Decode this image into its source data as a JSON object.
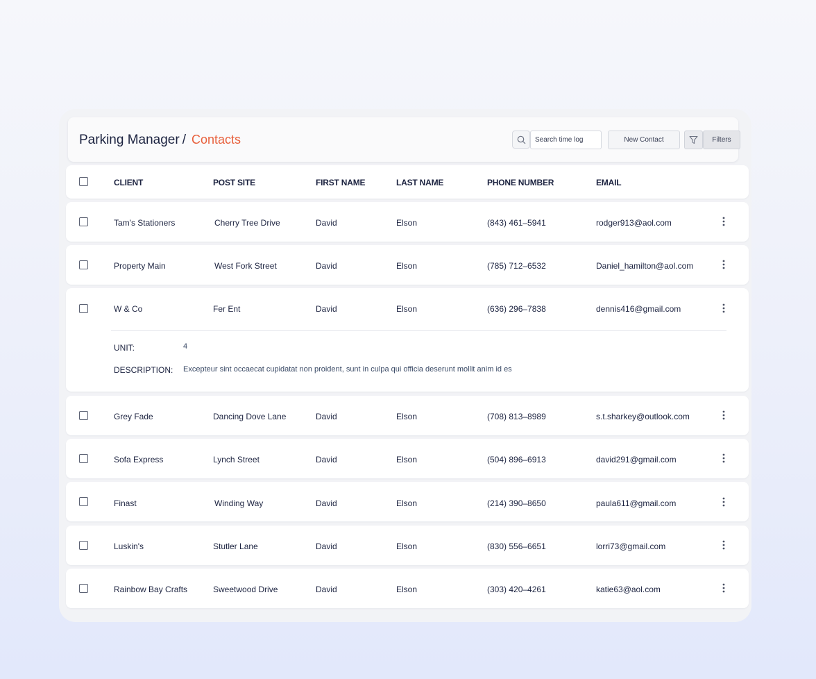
{
  "breadcrumb": {
    "parent": "Parking Manager",
    "separator": "/",
    "current": "Contacts"
  },
  "toolbar": {
    "search_placeholder": "Search time log",
    "new_contact_label": "New Contact",
    "filters_label": "Filters"
  },
  "icons": {
    "search": "search-icon",
    "filter": "filter-funnel-icon",
    "more": "vertical-dots-icon",
    "checkbox": "checkbox-icon"
  },
  "colors": {
    "accent": "#e8603c",
    "text": "#1c2340"
  },
  "table": {
    "headers": [
      "CLIENT",
      "POST SITE",
      "FIRST NAME",
      "LAST NAME",
      "PHONE NUMBER",
      "EMAIL"
    ],
    "rows": [
      {
        "client": "Tam's Stationers",
        "post_site": "Cherry Tree Drive",
        "first_name": "David",
        "last_name": "Elson",
        "phone": "(843) 461–5941",
        "email": "rodger913@aol.com"
      },
      {
        "client": "Property Main",
        "post_site": "West Fork Street",
        "first_name": "David",
        "last_name": "Elson",
        "phone": "(785) 712–6532",
        "email": "Daniel_hamilton@aol.com"
      },
      {
        "client": "W & Co",
        "post_site": "Fer Ent",
        "first_name": "David",
        "last_name": "Elson",
        "phone": "(636) 296–7838",
        "email": "dennis416@gmail.com"
      },
      {
        "client": "Grey Fade",
        "post_site": "Dancing Dove Lane",
        "first_name": "David",
        "last_name": "Elson",
        "phone": "(708) 813–8989",
        "email": "s.t.sharkey@outlook.com"
      },
      {
        "client": "Sofa Express",
        "post_site": "Lynch Street",
        "first_name": "David",
        "last_name": "Elson",
        "phone": "(504) 896–6913",
        "email": "david291@gmail.com"
      },
      {
        "client": "Finast",
        "post_site": "Winding Way",
        "first_name": "David",
        "last_name": "Elson",
        "phone": "(214) 390–8650",
        "email": "paula611@gmail.com"
      },
      {
        "client": "Luskin's",
        "post_site": "Stutler Lane",
        "first_name": "David",
        "last_name": "Elson",
        "phone": "(830) 556–6651",
        "email": "lorri73@gmail.com"
      },
      {
        "client": "Rainbow Bay Crafts",
        "post_site": "Sweetwood Drive",
        "first_name": "David",
        "last_name": "Elson",
        "phone": "(303) 420–4261",
        "email": "katie63@aol.com"
      }
    ],
    "expanded": {
      "unit_label": "UNIT:",
      "unit_value": "4",
      "description_label": "DESCRIPTION:",
      "description_value": "Excepteur sint occaecat cupidatat non proident, sunt in culpa qui officia deserunt mollit anim id es"
    }
  }
}
